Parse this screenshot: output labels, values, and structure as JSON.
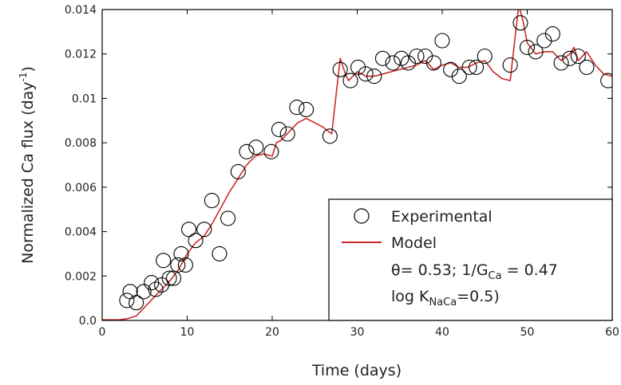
{
  "chart_data": {
    "type": "scatter",
    "xlabel": "Time (days)",
    "ylabel": {
      "main": "Normalized Ca flux (day",
      "sup": "-1",
      "close": ")"
    },
    "xlim": [
      0,
      60
    ],
    "ylim": [
      0,
      0.014
    ],
    "xticks": [
      "0",
      "10",
      "20",
      "30",
      "40",
      "50",
      "60"
    ],
    "yticks": [
      "0.0",
      "0.002",
      "0.004",
      "0.006",
      "0.008",
      "0.01",
      "0.012",
      "0.014"
    ],
    "grid": false,
    "legend_position": "lower-right",
    "legend": {
      "experimental": "Experimental",
      "model": "Model",
      "param_theta": "θ= 0.53; 1/G",
      "param_g_sub": "Ca",
      "param_g_value": " = 0.47",
      "param_log_prefix": "log K",
      "param_log_sub": "NaCa",
      "param_log_value": "=0.5)"
    },
    "series": [
      {
        "name": "Experimental",
        "kind": "scatter",
        "marker": "open-circle",
        "color": "#000000",
        "points": [
          [
            2.9,
            0.0009
          ],
          [
            3.3,
            0.0013
          ],
          [
            4.0,
            0.0008
          ],
          [
            4.9,
            0.0013
          ],
          [
            5.8,
            0.0017
          ],
          [
            6.3,
            0.0014
          ],
          [
            7.0,
            0.0016
          ],
          [
            7.2,
            0.0027
          ],
          [
            7.9,
            0.0019
          ],
          [
            8.4,
            0.0019
          ],
          [
            8.9,
            0.0025
          ],
          [
            9.3,
            0.003
          ],
          [
            9.8,
            0.0025
          ],
          [
            10.2,
            0.0041
          ],
          [
            11.0,
            0.0036
          ],
          [
            12.0,
            0.0041
          ],
          [
            12.9,
            0.0054
          ],
          [
            13.8,
            0.003
          ],
          [
            14.8,
            0.0046
          ],
          [
            16.0,
            0.0067
          ],
          [
            17.0,
            0.0076
          ],
          [
            18.1,
            0.0078
          ],
          [
            19.9,
            0.0076
          ],
          [
            20.8,
            0.0086
          ],
          [
            21.8,
            0.0084
          ],
          [
            22.9,
            0.0096
          ],
          [
            24.0,
            0.0095
          ],
          [
            26.8,
            0.0083
          ],
          [
            28.0,
            0.0113
          ],
          [
            29.2,
            0.0108
          ],
          [
            30.1,
            0.0114
          ],
          [
            31.0,
            0.0111
          ],
          [
            32.0,
            0.011
          ],
          [
            33.0,
            0.0118
          ],
          [
            34.2,
            0.0116
          ],
          [
            35.2,
            0.0118
          ],
          [
            36.0,
            0.0116
          ],
          [
            37.0,
            0.0119
          ],
          [
            38.0,
            0.0119
          ],
          [
            39.0,
            0.0116
          ],
          [
            40.0,
            0.0126
          ],
          [
            41.0,
            0.0113
          ],
          [
            42.0,
            0.011
          ],
          [
            43.2,
            0.0114
          ],
          [
            44.0,
            0.0114
          ],
          [
            45.0,
            0.0119
          ],
          [
            48.0,
            0.0115
          ],
          [
            49.2,
            0.0134
          ],
          [
            50.0,
            0.0123
          ],
          [
            51.0,
            0.0121
          ],
          [
            52.0,
            0.0126
          ],
          [
            53.0,
            0.0129
          ],
          [
            54.0,
            0.0116
          ],
          [
            55.0,
            0.0118
          ],
          [
            56.0,
            0.0119
          ],
          [
            57.0,
            0.0114
          ],
          [
            59.5,
            0.0108
          ]
        ]
      },
      {
        "name": "Model",
        "kind": "line",
        "color": "#cc2a2a",
        "points": [
          [
            0,
            3e-05
          ],
          [
            2,
            3e-05
          ],
          [
            3,
            8e-05
          ],
          [
            4,
            0.0002
          ],
          [
            5,
            0.0006
          ],
          [
            6,
            0.001
          ],
          [
            7,
            0.0014
          ],
          [
            8,
            0.0018
          ],
          [
            9,
            0.0023
          ],
          [
            10,
            0.003
          ],
          [
            11,
            0.0035
          ],
          [
            12,
            0.0038
          ],
          [
            13,
            0.0044
          ],
          [
            14,
            0.0051
          ],
          [
            15,
            0.0058
          ],
          [
            16,
            0.0064
          ],
          [
            17,
            0.007
          ],
          [
            18,
            0.0074
          ],
          [
            19,
            0.0075
          ],
          [
            20,
            0.0074
          ],
          [
            20.5,
            0.008
          ],
          [
            21,
            0.0081
          ],
          [
            22,
            0.0085
          ],
          [
            23,
            0.0089
          ],
          [
            24,
            0.0091
          ],
          [
            25,
            0.0089
          ],
          [
            26,
            0.0087
          ],
          [
            27,
            0.0084
          ],
          [
            28,
            0.0118
          ],
          [
            28.7,
            0.011
          ],
          [
            29,
            0.0108
          ],
          [
            30,
            0.0112
          ],
          [
            31,
            0.011
          ],
          [
            32,
            0.011
          ],
          [
            33,
            0.0111
          ],
          [
            34,
            0.0112
          ],
          [
            35,
            0.0113
          ],
          [
            36,
            0.0114
          ],
          [
            37,
            0.0115
          ],
          [
            38,
            0.0117
          ],
          [
            39,
            0.0113
          ],
          [
            40,
            0.0115
          ],
          [
            41,
            0.0116
          ],
          [
            42,
            0.0114
          ],
          [
            43,
            0.0114
          ],
          [
            44,
            0.0116
          ],
          [
            45,
            0.0117
          ],
          [
            46,
            0.0112
          ],
          [
            47,
            0.0109
          ],
          [
            48,
            0.0108
          ],
          [
            49,
            0.0142
          ],
          [
            49.5,
            0.0135
          ],
          [
            50,
            0.0125
          ],
          [
            51,
            0.012
          ],
          [
            52,
            0.0121
          ],
          [
            53,
            0.0121
          ],
          [
            54,
            0.0117
          ],
          [
            55,
            0.012
          ],
          [
            55.5,
            0.0123
          ],
          [
            56,
            0.0117
          ],
          [
            57,
            0.0121
          ],
          [
            58,
            0.0115
          ],
          [
            59,
            0.0111
          ],
          [
            60,
            0.011
          ]
        ]
      }
    ]
  }
}
